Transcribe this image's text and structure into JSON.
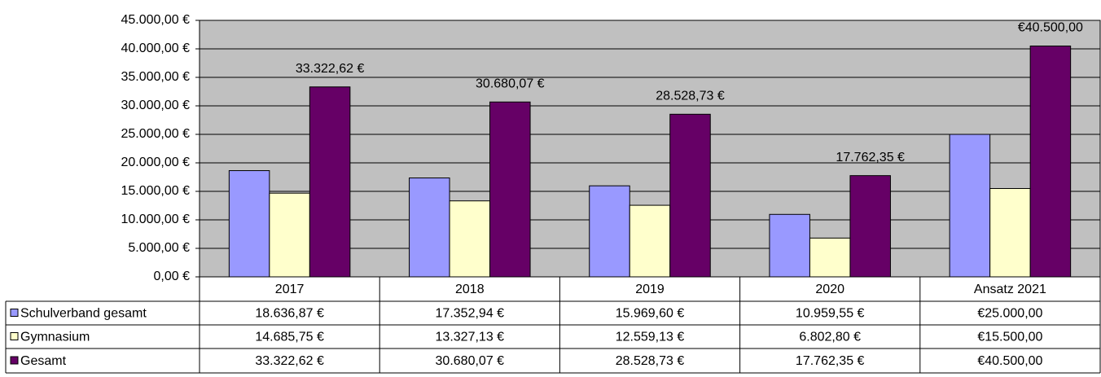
{
  "chart_data": {
    "type": "bar",
    "categories": [
      "2017",
      "2018",
      "2019",
      "2020",
      "Ansatz 2021"
    ],
    "series": [
      {
        "name": "Schulverband gesamt",
        "color": "#9999ff",
        "values": [
          18636.87,
          17352.94,
          15969.6,
          10959.55,
          25000.0
        ],
        "value_labels": [
          "18.636,87 €",
          "17.352,94 €",
          "15.969,60 €",
          "10.959,55 €",
          "€25.000,00"
        ]
      },
      {
        "name": "Gymnasium",
        "color": "#ffffcc",
        "values": [
          14685.75,
          13327.13,
          12559.13,
          6802.8,
          15500.0
        ],
        "value_labels": [
          "14.685,75 €",
          "13.327,13 €",
          "12.559,13 €",
          "6.802,80 €",
          "€15.500,00"
        ]
      },
      {
        "name": "Gesamt",
        "color": "#660066",
        "data_labels": true,
        "values": [
          33322.62,
          30680.07,
          28528.73,
          17762.35,
          40500.0
        ],
        "value_labels": [
          "33.322,62 €",
          "30.680,07 €",
          "28.528,73 €",
          "17.762,35 €",
          "€40.500,00"
        ]
      }
    ],
    "ylim": [
      0,
      45000
    ],
    "yticks": [
      {
        "value": 0,
        "label": "0,00 €"
      },
      {
        "value": 5000,
        "label": "5.000,00 €"
      },
      {
        "value": 10000,
        "label": "10.000,00 €"
      },
      {
        "value": 15000,
        "label": "15.000,00 €"
      },
      {
        "value": 20000,
        "label": "20.000,00 €"
      },
      {
        "value": 25000,
        "label": "25.000,00 €"
      },
      {
        "value": 30000,
        "label": "30.000,00 €"
      },
      {
        "value": 35000,
        "label": "35.000,00 €"
      },
      {
        "value": 40000,
        "label": "40.000,00 €"
      },
      {
        "value": 45000,
        "label": "45.000,00 €"
      }
    ],
    "grid": true,
    "plot_background": "#c0c0c0"
  }
}
